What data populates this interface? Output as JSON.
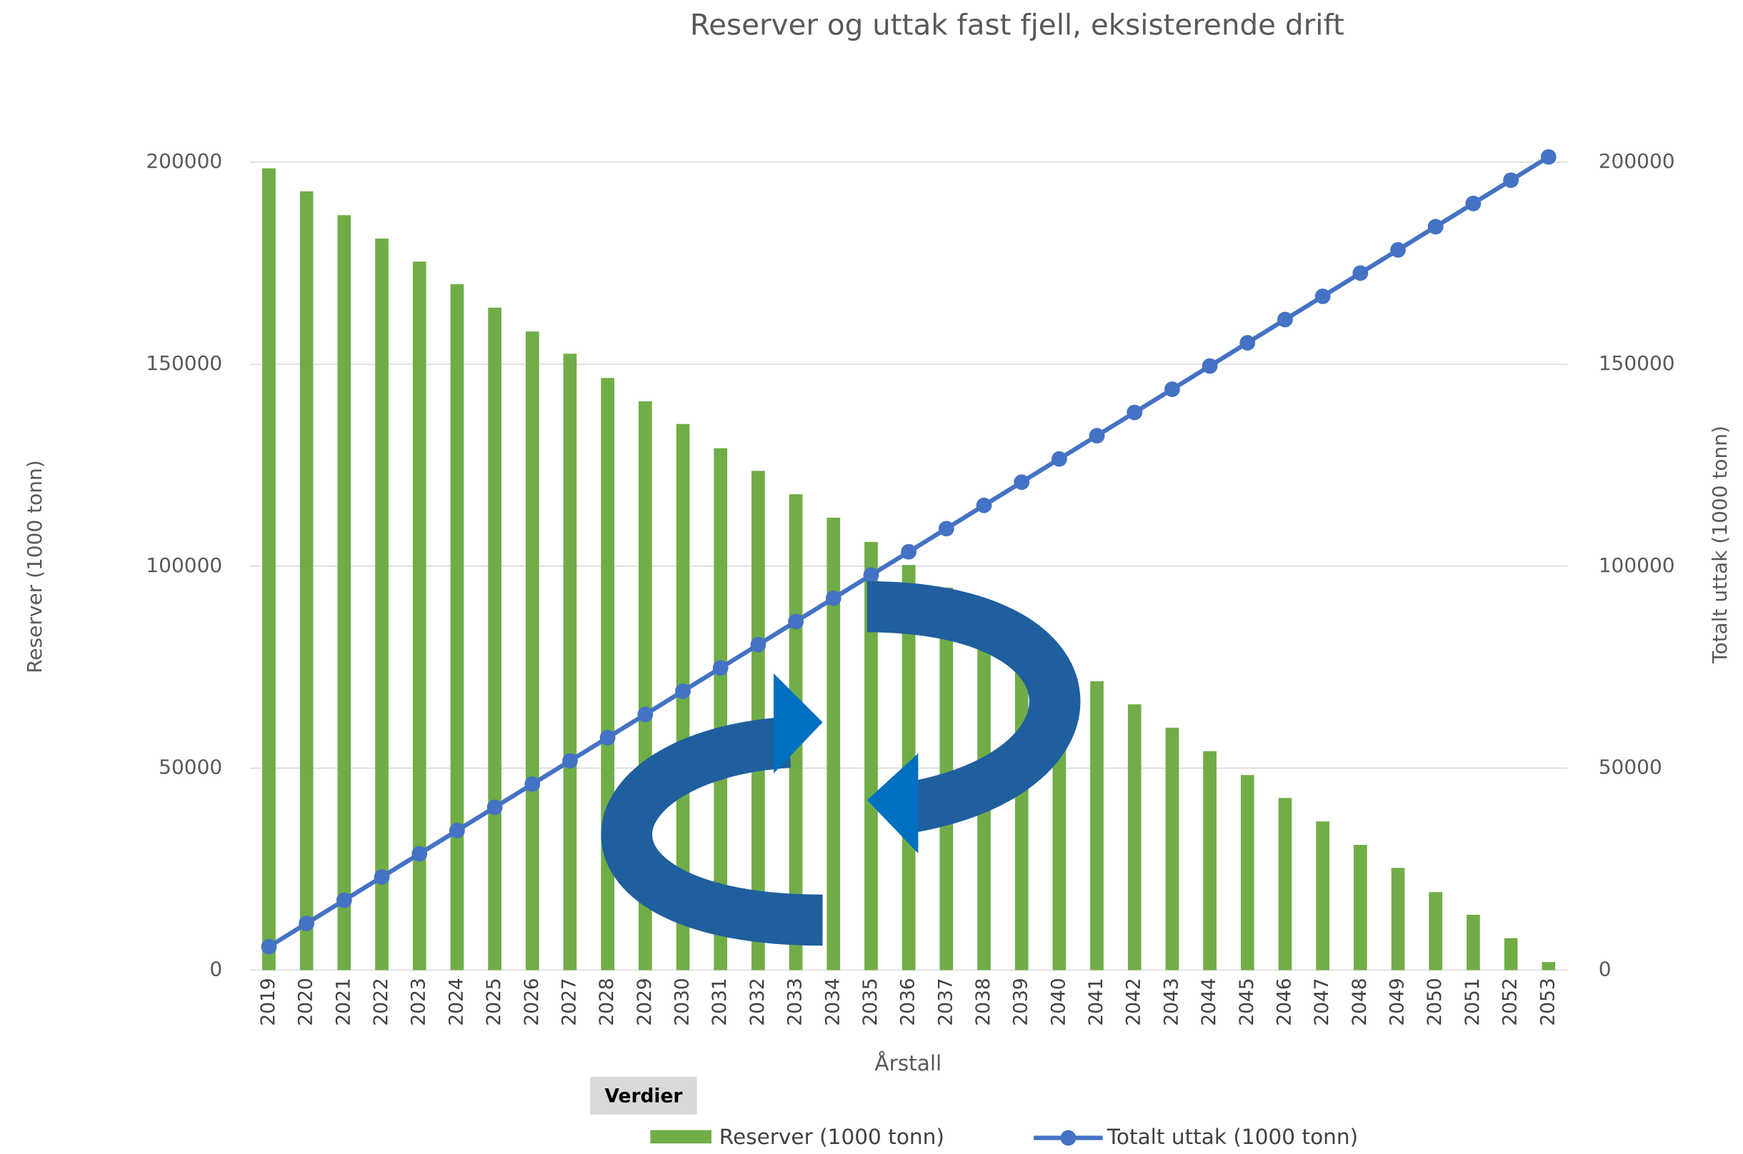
{
  "chart_data": {
    "type": "bar-line",
    "title": "Reserver og uttak fast fjell, eksisterende drift",
    "y_label": "Reserver (1000 tonn)",
    "y2_label": "Totalt uttak (1000 tonn)",
    "x_label": "Årstall",
    "button": "Verdier",
    "categories": [
      "2019",
      "2020",
      "2021",
      "2022",
      "2023",
      "2024",
      "2025",
      "2026",
      "2027",
      "2028",
      "2029",
      "2030",
      "2031",
      "2032",
      "2033",
      "2034",
      "2035",
      "2036",
      "2037",
      "2038",
      "2039",
      "2040",
      "2041",
      "2042",
      "2043",
      "2044",
      "2045",
      "2046",
      "2047",
      "2048",
      "2049",
      "2050",
      "2051",
      "2052",
      "2053"
    ],
    "series": [
      {
        "name": "Reserver (1000 tonn)",
        "type": "bar",
        "color": "#70ad47",
        "values": [
          198500,
          192800,
          186900,
          181100,
          175400,
          169800,
          164000,
          158100,
          152600,
          146600,
          140800,
          135200,
          129200,
          123600,
          117800,
          112000,
          106000,
          100300,
          94700,
          88800,
          83000,
          77000,
          71500,
          65800,
          60000,
          54200,
          48300,
          42600,
          36800,
          31000,
          25300,
          19300,
          13700,
          7900,
          2000
        ]
      },
      {
        "name": "Totalt uttak (1000 tonn)",
        "type": "line",
        "axis": "y2",
        "color": "#4472c4",
        "values": [
          5800,
          11550,
          17300,
          23050,
          28800,
          34550,
          40300,
          46050,
          51800,
          57550,
          63300,
          69050,
          74800,
          80550,
          86300,
          92050,
          97800,
          103550,
          109300,
          115050,
          120800,
          126550,
          132300,
          138050,
          143800,
          149550,
          155300,
          161050,
          166800,
          172550,
          178300,
          184050,
          189800,
          195550,
          201300
        ]
      }
    ],
    "ylim": [
      0,
      200000
    ],
    "yticks": [
      0,
      50000,
      100000,
      150000,
      200000
    ],
    "y2lim": [
      0,
      200000
    ],
    "y2ticks": [
      0,
      50000,
      100000,
      150000,
      200000
    ],
    "grid": true,
    "legend": "bottom"
  }
}
